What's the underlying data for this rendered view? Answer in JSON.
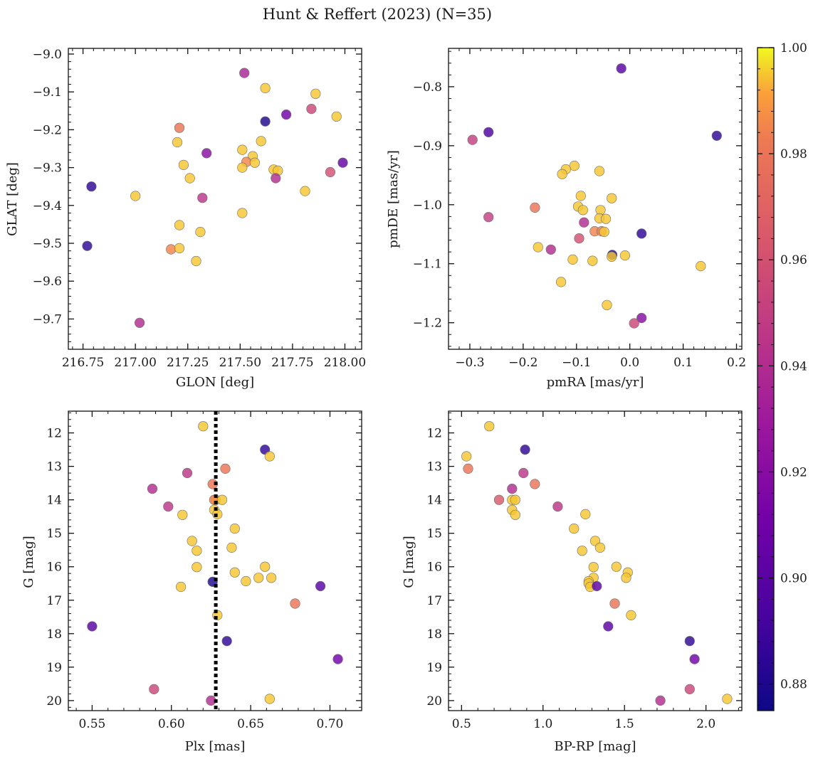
{
  "chart_data": {
    "type": "scatter",
    "title": "Hunt & Reffert (2023) (N=35)",
    "colorbar": {
      "range": [
        0.875,
        1.0
      ],
      "ticks": [
        0.88,
        0.9,
        0.92,
        0.94,
        0.96,
        0.98,
        1.0
      ],
      "tick_labels": [
        "0.88",
        "0.90",
        "0.92",
        "0.94",
        "0.96",
        "0.98",
        "1.00"
      ],
      "colormap": "plasma"
    },
    "panels": [
      {
        "id": "glon-glat",
        "xlabel": "GLON [deg]",
        "ylabel": "GLAT [deg]",
        "xlim": [
          216.68,
          218.08
        ],
        "ylim": [
          -9.78,
          -8.985
        ],
        "y_inverted": false,
        "xticks": [
          216.75,
          217.0,
          217.25,
          217.5,
          217.75,
          218.0
        ],
        "xtick_labels": [
          "216.75",
          "217.00",
          "217.25",
          "217.50",
          "217.75",
          "218.00"
        ],
        "yticks": [
          -9.0,
          -9.1,
          -9.2,
          -9.3,
          -9.4,
          -9.5,
          -9.6,
          -9.7
        ],
        "ytick_labels": [
          "−9.0",
          "−9.1",
          "−9.2",
          "−9.3",
          "−9.4",
          "−9.5",
          "−9.6",
          "−9.7"
        ],
        "points": [
          {
            "x": 217.52,
            "y": -9.05,
            "p": 0.935
          },
          {
            "x": 217.62,
            "y": -9.09,
            "p": 0.995
          },
          {
            "x": 217.86,
            "y": -9.105,
            "p": 0.995
          },
          {
            "x": 217.84,
            "y": -9.145,
            "p": 0.955
          },
          {
            "x": 217.72,
            "y": -9.16,
            "p": 0.91
          },
          {
            "x": 217.96,
            "y": -9.165,
            "p": 0.995
          },
          {
            "x": 217.62,
            "y": -9.178,
            "p": 0.88
          },
          {
            "x": 217.21,
            "y": -9.195,
            "p": 0.98
          },
          {
            "x": 217.6,
            "y": -9.23,
            "p": 0.995
          },
          {
            "x": 217.2,
            "y": -9.233,
            "p": 0.995
          },
          {
            "x": 217.51,
            "y": -9.253,
            "p": 0.995
          },
          {
            "x": 217.34,
            "y": -9.262,
            "p": 0.92
          },
          {
            "x": 217.56,
            "y": -9.27,
            "p": 0.995
          },
          {
            "x": 217.53,
            "y": -9.285,
            "p": 0.985
          },
          {
            "x": 217.57,
            "y": -9.287,
            "p": 0.995
          },
          {
            "x": 217.99,
            "y": -9.287,
            "p": 0.905
          },
          {
            "x": 217.23,
            "y": -9.293,
            "p": 0.995
          },
          {
            "x": 217.51,
            "y": -9.3,
            "p": 0.995
          },
          {
            "x": 217.66,
            "y": -9.305,
            "p": 0.995
          },
          {
            "x": 217.68,
            "y": -9.308,
            "p": 0.995
          },
          {
            "x": 217.93,
            "y": -9.312,
            "p": 0.96
          },
          {
            "x": 217.26,
            "y": -9.328,
            "p": 0.995
          },
          {
            "x": 217.67,
            "y": -9.328,
            "p": 0.94
          },
          {
            "x": 216.79,
            "y": -9.35,
            "p": 0.885
          },
          {
            "x": 217.81,
            "y": -9.362,
            "p": 0.995
          },
          {
            "x": 217.0,
            "y": -9.375,
            "p": 0.995
          },
          {
            "x": 217.32,
            "y": -9.38,
            "p": 0.945
          },
          {
            "x": 217.51,
            "y": -9.42,
            "p": 0.995
          },
          {
            "x": 217.21,
            "y": -9.452,
            "p": 0.995
          },
          {
            "x": 217.31,
            "y": -9.47,
            "p": 0.995
          },
          {
            "x": 216.77,
            "y": -9.507,
            "p": 0.885
          },
          {
            "x": 217.17,
            "y": -9.516,
            "p": 0.985
          },
          {
            "x": 217.21,
            "y": -9.513,
            "p": 0.995
          },
          {
            "x": 217.29,
            "y": -9.547,
            "p": 0.995
          },
          {
            "x": 217.02,
            "y": -9.71,
            "p": 0.94
          }
        ]
      },
      {
        "id": "pmra-pmde",
        "xlabel": "pmRA [mas/yr]",
        "ylabel": "pmDE [mas/yr]",
        "xlim": [
          -0.34,
          0.21
        ],
        "ylim": [
          -1.245,
          -0.735
        ],
        "y_inverted": false,
        "xticks": [
          -0.3,
          -0.2,
          -0.1,
          0.0,
          0.1,
          0.2
        ],
        "xtick_labels": [
          "−0.3",
          "−0.2",
          "−0.1",
          "0.0",
          "0.1",
          "0.2"
        ],
        "yticks": [
          -0.8,
          -0.9,
          -1.0,
          -1.1,
          -1.2
        ],
        "ytick_labels": [
          "−0.8",
          "−0.9",
          "−1.0",
          "−1.1",
          "−1.2"
        ],
        "points": [
          {
            "x": -0.016,
            "y": -0.769,
            "p": 0.9
          },
          {
            "x": -0.265,
            "y": -0.877,
            "p": 0.895
          },
          {
            "x": 0.163,
            "y": -0.883,
            "p": 0.885
          },
          {
            "x": -0.295,
            "y": -0.89,
            "p": 0.95
          },
          {
            "x": -0.104,
            "y": -0.934,
            "p": 0.995
          },
          {
            "x": -0.12,
            "y": -0.94,
            "p": 0.995
          },
          {
            "x": -0.057,
            "y": -0.943,
            "p": 0.995
          },
          {
            "x": -0.127,
            "y": -0.948,
            "p": 0.995
          },
          {
            "x": -0.092,
            "y": -0.985,
            "p": 0.995
          },
          {
            "x": -0.034,
            "y": -0.989,
            "p": 0.995
          },
          {
            "x": -0.178,
            "y": -1.005,
            "p": 0.98
          },
          {
            "x": -0.097,
            "y": -1.003,
            "p": 0.995
          },
          {
            "x": -0.088,
            "y": -1.009,
            "p": 0.995
          },
          {
            "x": -0.055,
            "y": -1.009,
            "p": 0.995
          },
          {
            "x": -0.265,
            "y": -1.021,
            "p": 0.95
          },
          {
            "x": -0.057,
            "y": -1.023,
            "p": 0.995
          },
          {
            "x": -0.045,
            "y": -1.024,
            "p": 0.995
          },
          {
            "x": -0.086,
            "y": -1.03,
            "p": 0.94
          },
          {
            "x": -0.066,
            "y": -1.045,
            "p": 0.985
          },
          {
            "x": -0.053,
            "y": -1.045,
            "p": 0.985
          },
          {
            "x": -0.048,
            "y": -1.046,
            "p": 0.995
          },
          {
            "x": 0.022,
            "y": -1.049,
            "p": 0.885
          },
          {
            "x": -0.095,
            "y": -1.057,
            "p": 0.96
          },
          {
            "x": -0.172,
            "y": -1.072,
            "p": 0.995
          },
          {
            "x": -0.148,
            "y": -1.076,
            "p": 0.94
          },
          {
            "x": -0.033,
            "y": -1.085,
            "p": 0.88
          },
          {
            "x": -0.009,
            "y": -1.086,
            "p": 0.995
          },
          {
            "x": -0.034,
            "y": -1.088,
            "p": 0.995
          },
          {
            "x": -0.107,
            "y": -1.093,
            "p": 0.995
          },
          {
            "x": -0.07,
            "y": -1.095,
            "p": 0.995
          },
          {
            "x": 0.133,
            "y": -1.104,
            "p": 0.995
          },
          {
            "x": -0.129,
            "y": -1.131,
            "p": 0.995
          },
          {
            "x": -0.043,
            "y": -1.17,
            "p": 0.995
          },
          {
            "x": 0.022,
            "y": -1.192,
            "p": 0.92
          },
          {
            "x": 0.008,
            "y": -1.201,
            "p": 0.955
          }
        ]
      },
      {
        "id": "plx-g",
        "xlabel": "Plx [mas]",
        "ylabel": "G [mag]",
        "xlim": [
          0.535,
          0.72
        ],
        "ylim": [
          11.35,
          20.3
        ],
        "y_inverted": true,
        "xticks": [
          0.55,
          0.6,
          0.65,
          0.7
        ],
        "xtick_labels": [
          "0.55",
          "0.60",
          "0.65",
          "0.70"
        ],
        "yticks": [
          12,
          13,
          14,
          15,
          16,
          17,
          18,
          19,
          20
        ],
        "ytick_labels": [
          "12",
          "13",
          "14",
          "15",
          "16",
          "17",
          "18",
          "19",
          "20"
        ],
        "vline": {
          "x": 0.628
        },
        "points": [
          {
            "x": 0.62,
            "y": 11.8,
            "p": 0.995
          },
          {
            "x": 0.659,
            "y": 12.5,
            "p": 0.885
          },
          {
            "x": 0.662,
            "y": 12.7,
            "p": 0.995
          },
          {
            "x": 0.634,
            "y": 13.07,
            "p": 0.98
          },
          {
            "x": 0.61,
            "y": 13.2,
            "p": 0.945
          },
          {
            "x": 0.626,
            "y": 13.53,
            "p": 0.98
          },
          {
            "x": 0.588,
            "y": 13.67,
            "p": 0.94
          },
          {
            "x": 0.628,
            "y": 14.0,
            "p": 0.995
          },
          {
            "x": 0.627,
            "y": 14.0,
            "p": 0.985
          },
          {
            "x": 0.632,
            "y": 14.0,
            "p": 0.995
          },
          {
            "x": 0.598,
            "y": 14.2,
            "p": 0.945
          },
          {
            "x": 0.627,
            "y": 14.3,
            "p": 0.995
          },
          {
            "x": 0.607,
            "y": 14.45,
            "p": 0.995
          },
          {
            "x": 0.629,
            "y": 14.43,
            "p": 0.995
          },
          {
            "x": 0.64,
            "y": 14.86,
            "p": 0.995
          },
          {
            "x": 0.613,
            "y": 15.23,
            "p": 0.995
          },
          {
            "x": 0.638,
            "y": 15.43,
            "p": 0.995
          },
          {
            "x": 0.616,
            "y": 15.52,
            "p": 0.995
          },
          {
            "x": 0.616,
            "y": 16.01,
            "p": 0.995
          },
          {
            "x": 0.659,
            "y": 16.0,
            "p": 0.995
          },
          {
            "x": 0.64,
            "y": 16.17,
            "p": 0.995
          },
          {
            "x": 0.655,
            "y": 16.33,
            "p": 0.995
          },
          {
            "x": 0.663,
            "y": 16.33,
            "p": 0.995
          },
          {
            "x": 0.647,
            "y": 16.43,
            "p": 0.995
          },
          {
            "x": 0.626,
            "y": 16.45,
            "p": 0.88
          },
          {
            "x": 0.606,
            "y": 16.6,
            "p": 0.995
          },
          {
            "x": 0.694,
            "y": 16.58,
            "p": 0.9
          },
          {
            "x": 0.678,
            "y": 17.1,
            "p": 0.98
          },
          {
            "x": 0.629,
            "y": 17.45,
            "p": 0.995
          },
          {
            "x": 0.55,
            "y": 17.78,
            "p": 0.9
          },
          {
            "x": 0.635,
            "y": 18.22,
            "p": 0.885
          },
          {
            "x": 0.705,
            "y": 18.76,
            "p": 0.91
          },
          {
            "x": 0.589,
            "y": 19.66,
            "p": 0.955
          },
          {
            "x": 0.625,
            "y": 20.0,
            "p": 0.94
          },
          {
            "x": 0.662,
            "y": 19.95,
            "p": 0.995
          }
        ]
      },
      {
        "id": "bprp-g",
        "xlabel": "BP-RP [mag]",
        "ylabel": "G [mag]",
        "xlim": [
          0.42,
          2.22
        ],
        "ylim": [
          11.35,
          20.3
        ],
        "y_inverted": true,
        "xticks": [
          0.5,
          1.0,
          1.5,
          2.0
        ],
        "xtick_labels": [
          "0.5",
          "1.0",
          "1.5",
          "2.0"
        ],
        "yticks": [
          12,
          13,
          14,
          15,
          16,
          17,
          18,
          19,
          20
        ],
        "ytick_labels": [
          "12",
          "13",
          "14",
          "15",
          "16",
          "17",
          "18",
          "19",
          "20"
        ],
        "points": [
          {
            "x": 0.67,
            "y": 11.8,
            "p": 0.995
          },
          {
            "x": 0.89,
            "y": 12.5,
            "p": 0.885
          },
          {
            "x": 0.53,
            "y": 12.7,
            "p": 0.995
          },
          {
            "x": 0.54,
            "y": 13.07,
            "p": 0.98
          },
          {
            "x": 0.88,
            "y": 13.2,
            "p": 0.945
          },
          {
            "x": 0.95,
            "y": 13.53,
            "p": 0.98
          },
          {
            "x": 0.81,
            "y": 13.67,
            "p": 0.94
          },
          {
            "x": 0.73,
            "y": 14.0,
            "p": 0.965
          },
          {
            "x": 0.81,
            "y": 14.0,
            "p": 0.995
          },
          {
            "x": 0.83,
            "y": 14.0,
            "p": 0.995
          },
          {
            "x": 1.09,
            "y": 14.2,
            "p": 0.945
          },
          {
            "x": 0.81,
            "y": 14.3,
            "p": 0.995
          },
          {
            "x": 0.83,
            "y": 14.45,
            "p": 0.995
          },
          {
            "x": 1.26,
            "y": 14.43,
            "p": 0.995
          },
          {
            "x": 1.19,
            "y": 14.86,
            "p": 0.995
          },
          {
            "x": 1.32,
            "y": 15.23,
            "p": 0.995
          },
          {
            "x": 1.35,
            "y": 15.43,
            "p": 0.995
          },
          {
            "x": 1.24,
            "y": 15.52,
            "p": 0.995
          },
          {
            "x": 1.31,
            "y": 16.01,
            "p": 0.995
          },
          {
            "x": 1.45,
            "y": 16.0,
            "p": 0.995
          },
          {
            "x": 1.52,
            "y": 16.17,
            "p": 0.995
          },
          {
            "x": 1.31,
            "y": 16.33,
            "p": 0.995
          },
          {
            "x": 1.51,
            "y": 16.33,
            "p": 0.995
          },
          {
            "x": 1.28,
            "y": 16.43,
            "p": 0.995
          },
          {
            "x": 1.28,
            "y": 16.5,
            "p": 0.995
          },
          {
            "x": 1.29,
            "y": 16.6,
            "p": 0.995
          },
          {
            "x": 1.33,
            "y": 16.58,
            "p": 0.9
          },
          {
            "x": 1.44,
            "y": 17.1,
            "p": 0.98
          },
          {
            "x": 1.54,
            "y": 17.45,
            "p": 0.995
          },
          {
            "x": 1.4,
            "y": 17.78,
            "p": 0.9
          },
          {
            "x": 1.9,
            "y": 18.22,
            "p": 0.885
          },
          {
            "x": 1.93,
            "y": 18.76,
            "p": 0.91
          },
          {
            "x": 1.9,
            "y": 19.66,
            "p": 0.955
          },
          {
            "x": 1.72,
            "y": 20.0,
            "p": 0.94
          },
          {
            "x": 2.13,
            "y": 19.95,
            "p": 0.995
          }
        ]
      }
    ]
  }
}
